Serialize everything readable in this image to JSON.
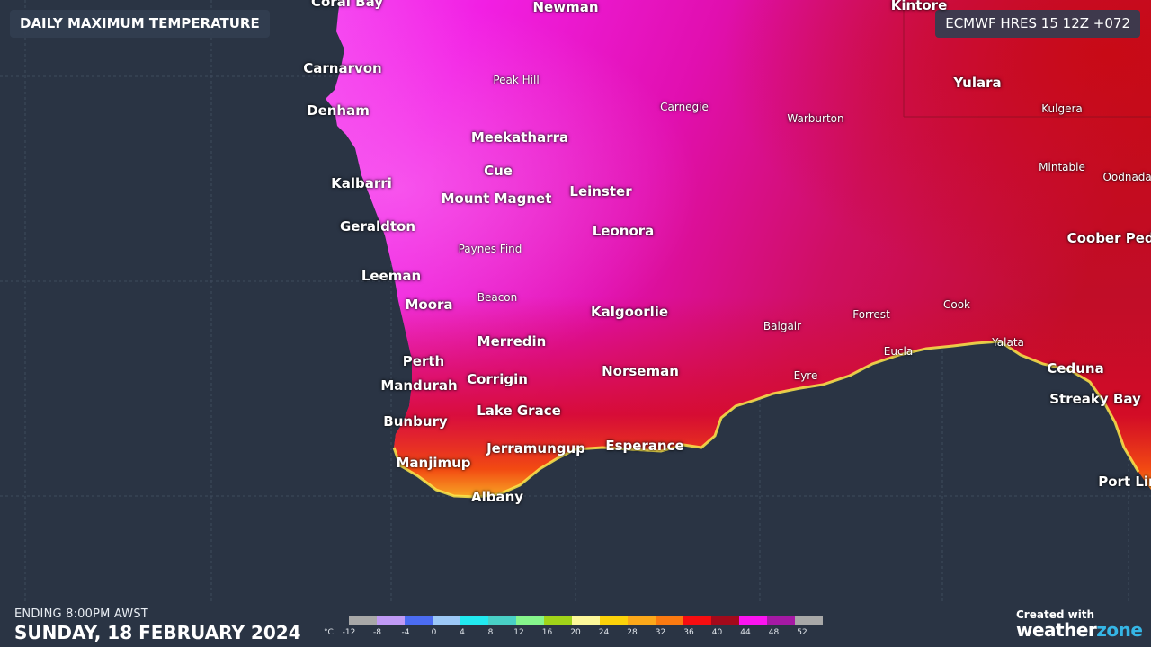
{
  "header": {
    "title": "DAILY MAXIMUM TEMPERATURE",
    "model": "ECMWF HRES 15 12Z +072"
  },
  "footer": {
    "ending": "ENDING 8:00PM AWST",
    "date": "SUNDAY, 18 FEBRUARY 2024",
    "credit_created": "Created with",
    "credit_brand_a": "weather",
    "credit_brand_b": "zone"
  },
  "legend": {
    "unit": "°C",
    "colors": [
      "#a8a8a8",
      "#c09af5",
      "#4b6cf2",
      "#9cc8f7",
      "#22e9f0",
      "#49d0c6",
      "#86f58c",
      "#a1d419",
      "#fdf89a",
      "#fcd20a",
      "#fca81a",
      "#fb7a11",
      "#f70d10",
      "#a30a1b",
      "#fb14f0",
      "#a519a4",
      "#a8a8a8"
    ],
    "ticks": [
      "-12",
      "-8",
      "-4",
      "0",
      "4",
      "8",
      "12",
      "16",
      "20",
      "24",
      "28",
      "32",
      "36",
      "40",
      "44",
      "48",
      "52"
    ]
  },
  "colors": {
    "ocean": "#2a3444",
    "land_hot": "#e90ea8",
    "land_west": "#f43ee6",
    "land_red": "#c60e2c",
    "coast_orange": "#f36a12",
    "coast_yellow": "#fbe43c"
  },
  "places": [
    {
      "name": "Coral Bay",
      "size": "major"
    },
    {
      "name": "Newman",
      "size": "major"
    },
    {
      "name": "Kintore",
      "size": "major"
    },
    {
      "name": "Carnarvon",
      "size": "major"
    },
    {
      "name": "Peak Hill",
      "size": "minor"
    },
    {
      "name": "Carnegie",
      "size": "minor"
    },
    {
      "name": "Warburton",
      "size": "minor"
    },
    {
      "name": "Yulara",
      "size": "major"
    },
    {
      "name": "Kulgera",
      "size": "minor"
    },
    {
      "name": "Denham",
      "size": "major"
    },
    {
      "name": "Meekatharra",
      "size": "major"
    },
    {
      "name": "Cue",
      "size": "major"
    },
    {
      "name": "Mintabie",
      "size": "minor"
    },
    {
      "name": "Oodnadatta",
      "size": "minor"
    },
    {
      "name": "Kalbarri",
      "size": "major"
    },
    {
      "name": "Leinster",
      "size": "major"
    },
    {
      "name": "Mount Magnet",
      "size": "major"
    },
    {
      "name": "Geraldton",
      "size": "major"
    },
    {
      "name": "Leonora",
      "size": "major"
    },
    {
      "name": "Coober Pedy",
      "size": "major"
    },
    {
      "name": "Paynes Find",
      "size": "minor"
    },
    {
      "name": "Leeman",
      "size": "major"
    },
    {
      "name": "Beacon",
      "size": "minor"
    },
    {
      "name": "Moora",
      "size": "major"
    },
    {
      "name": "Kalgoorlie",
      "size": "major"
    },
    {
      "name": "Cook",
      "size": "minor"
    },
    {
      "name": "Forrest",
      "size": "minor"
    },
    {
      "name": "Balgair",
      "size": "minor"
    },
    {
      "name": "Merredin",
      "size": "major"
    },
    {
      "name": "Yalata",
      "size": "minor"
    },
    {
      "name": "Eucla",
      "size": "minor"
    },
    {
      "name": "Perth",
      "size": "major"
    },
    {
      "name": "Ceduna",
      "size": "major"
    },
    {
      "name": "Norseman",
      "size": "major"
    },
    {
      "name": "Eyre",
      "size": "minor"
    },
    {
      "name": "Corrigin",
      "size": "major"
    },
    {
      "name": "Mandurah",
      "size": "major"
    },
    {
      "name": "Streaky Bay",
      "size": "major"
    },
    {
      "name": "Lake Grace",
      "size": "major"
    },
    {
      "name": "Bunbury",
      "size": "major"
    },
    {
      "name": "Esperance",
      "size": "major"
    },
    {
      "name": "Jerramungup",
      "size": "major"
    },
    {
      "name": "Manjimup",
      "size": "major"
    },
    {
      "name": "Albany",
      "size": "major"
    },
    {
      "name": "Port Lincoln",
      "size": "major"
    }
  ]
}
